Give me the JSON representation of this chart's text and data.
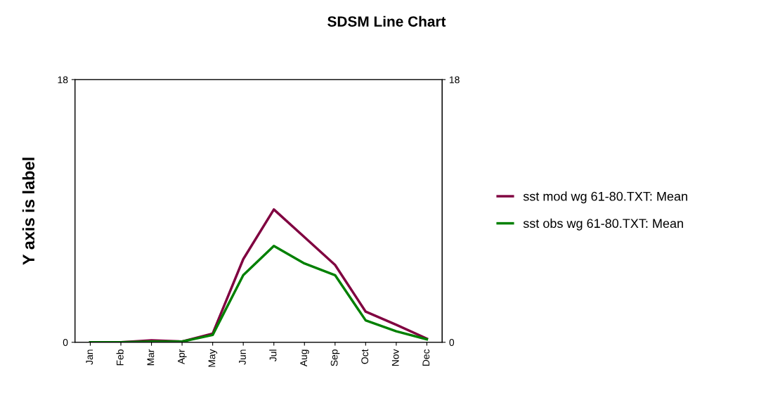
{
  "chart_data": {
    "type": "line",
    "title": "SDSM Line Chart",
    "ylabel": "Y axis is label",
    "categories": [
      "Jan",
      "Feb",
      "Mar",
      "Apr",
      "May",
      "Jun",
      "Jul",
      "Aug",
      "Sep",
      "Oct",
      "Nov",
      "Dec"
    ],
    "series": [
      {
        "name": "sst mod wg 61-80.TXT: Mean",
        "color": "#800040",
        "values": [
          0,
          0,
          0.13,
          0.05,
          0.6,
          5.7,
          9.1,
          7.2,
          5.3,
          2.1,
          1.2,
          0.25
        ]
      },
      {
        "name": "sst obs wg 61-80.TXT: Mean",
        "color": "#008000",
        "values": [
          0,
          0,
          0.05,
          0.05,
          0.5,
          4.6,
          6.6,
          5.4,
          4.6,
          1.5,
          0.75,
          0.2
        ]
      }
    ],
    "ylim": [
      0,
      18
    ],
    "yticks": [
      0,
      18
    ],
    "y2lim": [
      0,
      18
    ],
    "y2ticks": [
      0,
      18
    ],
    "grid": false,
    "legend": "right",
    "marker": "none",
    "line_style": "solid"
  }
}
